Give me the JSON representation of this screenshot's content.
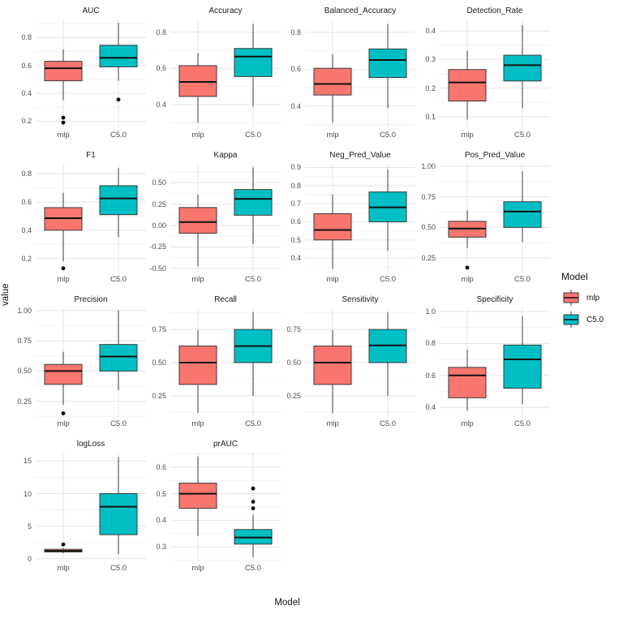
{
  "figure": {
    "y_axis_title": "value",
    "x_axis_title": "Model",
    "legend": {
      "title": "Model",
      "items": [
        {
          "label": "mlp",
          "color": "#F8766D"
        },
        {
          "label": "C5.0",
          "color": "#00BFC4"
        }
      ]
    }
  },
  "chart_data": {
    "type": "boxplot",
    "faceted": true,
    "facet_columns": 4,
    "categories": [
      "mlp",
      "C5.0"
    ],
    "series_colors": {
      "mlp": "#F8766D",
      "C5.0": "#00BFC4"
    },
    "grid": {
      "major_color": "#E3E3E3",
      "minor_color": "#F2F2F2",
      "box_stroke": "#3a3a3a",
      "median_color": "#111111"
    },
    "facets": [
      {
        "title": "AUC",
        "ylim": [
          0.15,
          0.93
        ],
        "tick_values": [
          0.2,
          0.4,
          0.6,
          0.8
        ],
        "tick_labels": [
          "0.2",
          "0.4",
          "0.6",
          "0.8"
        ],
        "boxes": [
          {
            "group": "mlp",
            "low": 0.35,
            "q1": 0.49,
            "median": 0.58,
            "q3": 0.63,
            "high": 0.715,
            "outliers": [
              0.225,
              0.19
            ]
          },
          {
            "group": "C5.0",
            "low": 0.49,
            "q1": 0.59,
            "median": 0.655,
            "q3": 0.745,
            "high": 0.905,
            "outliers": [
              0.355
            ]
          }
        ]
      },
      {
        "title": "Accuracy",
        "ylim": [
          0.27,
          0.87
        ],
        "tick_values": [
          0.4,
          0.6,
          0.8
        ],
        "tick_labels": [
          "0.4",
          "0.6",
          "0.8"
        ],
        "boxes": [
          {
            "group": "mlp",
            "low": 0.3,
            "q1": 0.445,
            "median": 0.525,
            "q3": 0.615,
            "high": 0.685,
            "outliers": []
          },
          {
            "group": "C5.0",
            "low": 0.39,
            "q1": 0.555,
            "median": 0.665,
            "q3": 0.71,
            "high": 0.845,
            "outliers": []
          }
        ]
      },
      {
        "title": "Balanced_Accuracy",
        "ylim": [
          0.28,
          0.87
        ],
        "tick_values": [
          0.4,
          0.6,
          0.8
        ],
        "tick_labels": [
          "0.4",
          "0.6",
          "0.8"
        ],
        "boxes": [
          {
            "group": "mlp",
            "low": 0.31,
            "q1": 0.46,
            "median": 0.52,
            "q3": 0.605,
            "high": 0.68,
            "outliers": []
          },
          {
            "group": "C5.0",
            "low": 0.39,
            "q1": 0.555,
            "median": 0.65,
            "q3": 0.71,
            "high": 0.845,
            "outliers": []
          }
        ]
      },
      {
        "title": "Detection_Rate",
        "ylim": [
          0.06,
          0.44
        ],
        "tick_values": [
          0.1,
          0.2,
          0.3,
          0.4
        ],
        "tick_labels": [
          "0.1",
          "0.2",
          "0.3",
          "0.4"
        ],
        "boxes": [
          {
            "group": "mlp",
            "low": 0.09,
            "q1": 0.155,
            "median": 0.22,
            "q3": 0.265,
            "high": 0.33,
            "outliers": []
          },
          {
            "group": "C5.0",
            "low": 0.13,
            "q1": 0.225,
            "median": 0.28,
            "q3": 0.315,
            "high": 0.42,
            "outliers": []
          }
        ]
      },
      {
        "title": "F1",
        "ylim": [
          0.1,
          0.87
        ],
        "tick_values": [
          0.2,
          0.4,
          0.6,
          0.8
        ],
        "tick_labels": [
          "0.2",
          "0.4",
          "0.6",
          "0.8"
        ],
        "boxes": [
          {
            "group": "mlp",
            "low": 0.18,
            "q1": 0.4,
            "median": 0.485,
            "q3": 0.56,
            "high": 0.665,
            "outliers": [
              0.13
            ]
          },
          {
            "group": "C5.0",
            "low": 0.35,
            "q1": 0.51,
            "median": 0.625,
            "q3": 0.715,
            "high": 0.84,
            "outliers": []
          }
        ]
      },
      {
        "title": "Kappa",
        "ylim": [
          -0.55,
          0.72
        ],
        "tick_values": [
          -0.5,
          -0.25,
          0.0,
          0.25,
          0.5
        ],
        "tick_labels": [
          "-0.50",
          "-0.25",
          "0.00",
          "0.25",
          "0.50"
        ],
        "boxes": [
          {
            "group": "mlp",
            "low": -0.48,
            "q1": -0.09,
            "median": 0.04,
            "q3": 0.21,
            "high": 0.36,
            "outliers": []
          },
          {
            "group": "C5.0",
            "low": -0.22,
            "q1": 0.12,
            "median": 0.31,
            "q3": 0.42,
            "high": 0.68,
            "outliers": []
          }
        ]
      },
      {
        "title": "Neg_Pred_Value",
        "ylim": [
          0.32,
          0.92
        ],
        "tick_values": [
          0.4,
          0.5,
          0.6,
          0.7,
          0.8,
          0.9
        ],
        "tick_labels": [
          "0.4",
          "0.5",
          "0.6",
          "0.7",
          "0.8",
          "0.9"
        ],
        "boxes": [
          {
            "group": "mlp",
            "low": 0.34,
            "q1": 0.5,
            "median": 0.555,
            "q3": 0.645,
            "high": 0.75,
            "outliers": []
          },
          {
            "group": "C5.0",
            "low": 0.44,
            "q1": 0.6,
            "median": 0.68,
            "q3": 0.765,
            "high": 0.89,
            "outliers": []
          }
        ]
      },
      {
        "title": "Pos_Pred_Value",
        "ylim": [
          0.13,
          1.02
        ],
        "tick_values": [
          0.25,
          0.5,
          0.75,
          1.0
        ],
        "tick_labels": [
          "0.25",
          "0.50",
          "0.75",
          "1.00"
        ],
        "boxes": [
          {
            "group": "mlp",
            "low": 0.33,
            "q1": 0.42,
            "median": 0.49,
            "q3": 0.55,
            "high": 0.64,
            "outliers": [
              0.17
            ]
          },
          {
            "group": "C5.0",
            "low": 0.38,
            "q1": 0.5,
            "median": 0.63,
            "q3": 0.71,
            "high": 0.96,
            "outliers": []
          }
        ]
      },
      {
        "title": "Precision",
        "ylim": [
          0.12,
          1.02
        ],
        "tick_values": [
          0.25,
          0.5,
          0.75,
          1.0
        ],
        "tick_labels": [
          "0.25",
          "0.50",
          "0.75",
          "1.00"
        ],
        "boxes": [
          {
            "group": "mlp",
            "low": 0.22,
            "q1": 0.39,
            "median": 0.5,
            "q3": 0.555,
            "high": 0.66,
            "outliers": [
              0.15
            ]
          },
          {
            "group": "C5.0",
            "low": 0.34,
            "q1": 0.5,
            "median": 0.62,
            "q3": 0.72,
            "high": 1.0,
            "outliers": []
          }
        ]
      },
      {
        "title": "Recall",
        "ylim": [
          0.09,
          0.91
        ],
        "tick_values": [
          0.25,
          0.5,
          0.75
        ],
        "tick_labels": [
          "0.25",
          "0.50",
          "0.75"
        ],
        "boxes": [
          {
            "group": "mlp",
            "low": 0.12,
            "q1": 0.335,
            "median": 0.5,
            "q3": 0.625,
            "high": 0.745,
            "outliers": []
          },
          {
            "group": "C5.0",
            "low": 0.25,
            "q1": 0.5,
            "median": 0.625,
            "q3": 0.75,
            "high": 0.88,
            "outliers": []
          }
        ]
      },
      {
        "title": "Sensitivity",
        "ylim": [
          0.09,
          0.91
        ],
        "tick_values": [
          0.25,
          0.5,
          0.75
        ],
        "tick_labels": [
          "0.25",
          "0.50",
          "0.75"
        ],
        "boxes": [
          {
            "group": "mlp",
            "low": 0.12,
            "q1": 0.335,
            "median": 0.5,
            "q3": 0.625,
            "high": 0.745,
            "outliers": []
          },
          {
            "group": "C5.0",
            "low": 0.25,
            "q1": 0.5,
            "median": 0.63,
            "q3": 0.75,
            "high": 0.88,
            "outliers": []
          }
        ]
      },
      {
        "title": "Specificity",
        "ylim": [
          0.34,
          1.02
        ],
        "tick_values": [
          0.4,
          0.6,
          0.8,
          1.0
        ],
        "tick_labels": [
          "0.4",
          "0.6",
          "0.8",
          "1.0"
        ],
        "boxes": [
          {
            "group": "mlp",
            "low": 0.38,
            "q1": 0.46,
            "median": 0.6,
            "q3": 0.65,
            "high": 0.76,
            "outliers": []
          },
          {
            "group": "C5.0",
            "low": 0.42,
            "q1": 0.52,
            "median": 0.7,
            "q3": 0.79,
            "high": 0.97,
            "outliers": []
          }
        ]
      },
      {
        "title": "logLoss",
        "ylim": [
          -0.4,
          16.3
        ],
        "tick_values": [
          0,
          5,
          10,
          15
        ],
        "tick_labels": [
          "0",
          "5",
          "10",
          "15"
        ],
        "boxes": [
          {
            "group": "mlp",
            "low": 0.85,
            "q1": 1.05,
            "median": 1.2,
            "q3": 1.45,
            "high": 1.65,
            "outliers": [
              2.2
            ]
          },
          {
            "group": "C5.0",
            "low": 0.7,
            "q1": 3.7,
            "median": 8.0,
            "q3": 10.0,
            "high": 15.6,
            "outliers": []
          }
        ]
      },
      {
        "title": "prAUC",
        "ylim": [
          0.245,
          0.655
        ],
        "tick_values": [
          0.3,
          0.4,
          0.5,
          0.6
        ],
        "tick_labels": [
          "0.3",
          "0.4",
          "0.5",
          "0.6"
        ],
        "boxes": [
          {
            "group": "mlp",
            "low": 0.34,
            "q1": 0.445,
            "median": 0.5,
            "q3": 0.54,
            "high": 0.64,
            "outliers": []
          },
          {
            "group": "C5.0",
            "low": 0.26,
            "q1": 0.31,
            "median": 0.335,
            "q3": 0.365,
            "high": 0.42,
            "outliers": [
              0.52,
              0.47,
              0.445
            ]
          }
        ]
      }
    ]
  }
}
